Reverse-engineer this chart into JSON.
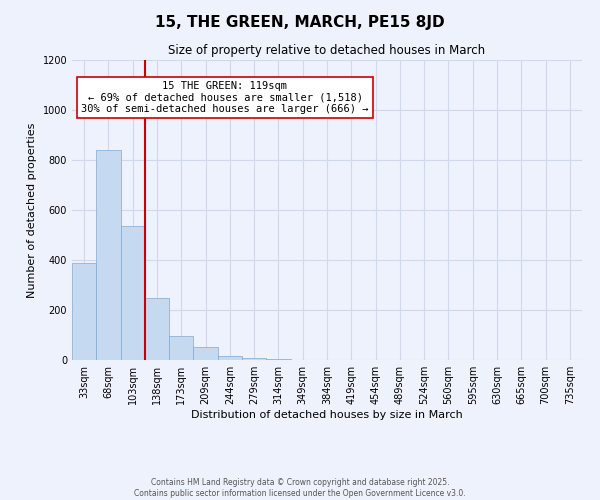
{
  "title": "15, THE GREEN, MARCH, PE15 8JD",
  "subtitle": "Size of property relative to detached houses in March",
  "xlabel": "Distribution of detached houses by size in March",
  "ylabel": "Number of detached properties",
  "bar_labels": [
    "33sqm",
    "68sqm",
    "103sqm",
    "138sqm",
    "173sqm",
    "209sqm",
    "244sqm",
    "279sqm",
    "314sqm",
    "349sqm",
    "384sqm",
    "419sqm",
    "454sqm",
    "489sqm",
    "524sqm",
    "560sqm",
    "595sqm",
    "630sqm",
    "665sqm",
    "700sqm",
    "735sqm"
  ],
  "bar_values": [
    390,
    840,
    535,
    248,
    98,
    52,
    18,
    8,
    3,
    1,
    0,
    0,
    0,
    0,
    0,
    0,
    0,
    0,
    0,
    0,
    0
  ],
  "bar_color": "#c5d9f1",
  "bar_edge_color": "#7da9d4",
  "vline_x": 2.5,
  "vline_color": "#cc0000",
  "annotation_title": "15 THE GREEN: 119sqm",
  "annotation_line1": "← 69% of detached houses are smaller (1,518)",
  "annotation_line2": "30% of semi-detached houses are larger (666) →",
  "annotation_box_color": "#ffffff",
  "annotation_box_edge": "#cc0000",
  "ylim": [
    0,
    1200
  ],
  "yticks": [
    0,
    200,
    400,
    600,
    800,
    1000,
    1200
  ],
  "background_color": "#eef2fc",
  "grid_color": "#d0d8ee",
  "footer_line1": "Contains HM Land Registry data © Crown copyright and database right 2025.",
  "footer_line2": "Contains public sector information licensed under the Open Government Licence v3.0.",
  "title_fontsize": 11,
  "subtitle_fontsize": 8.5,
  "axis_label_fontsize": 8,
  "tick_fontsize": 7,
  "annotation_fontsize": 7.5,
  "footer_fontsize": 5.5
}
